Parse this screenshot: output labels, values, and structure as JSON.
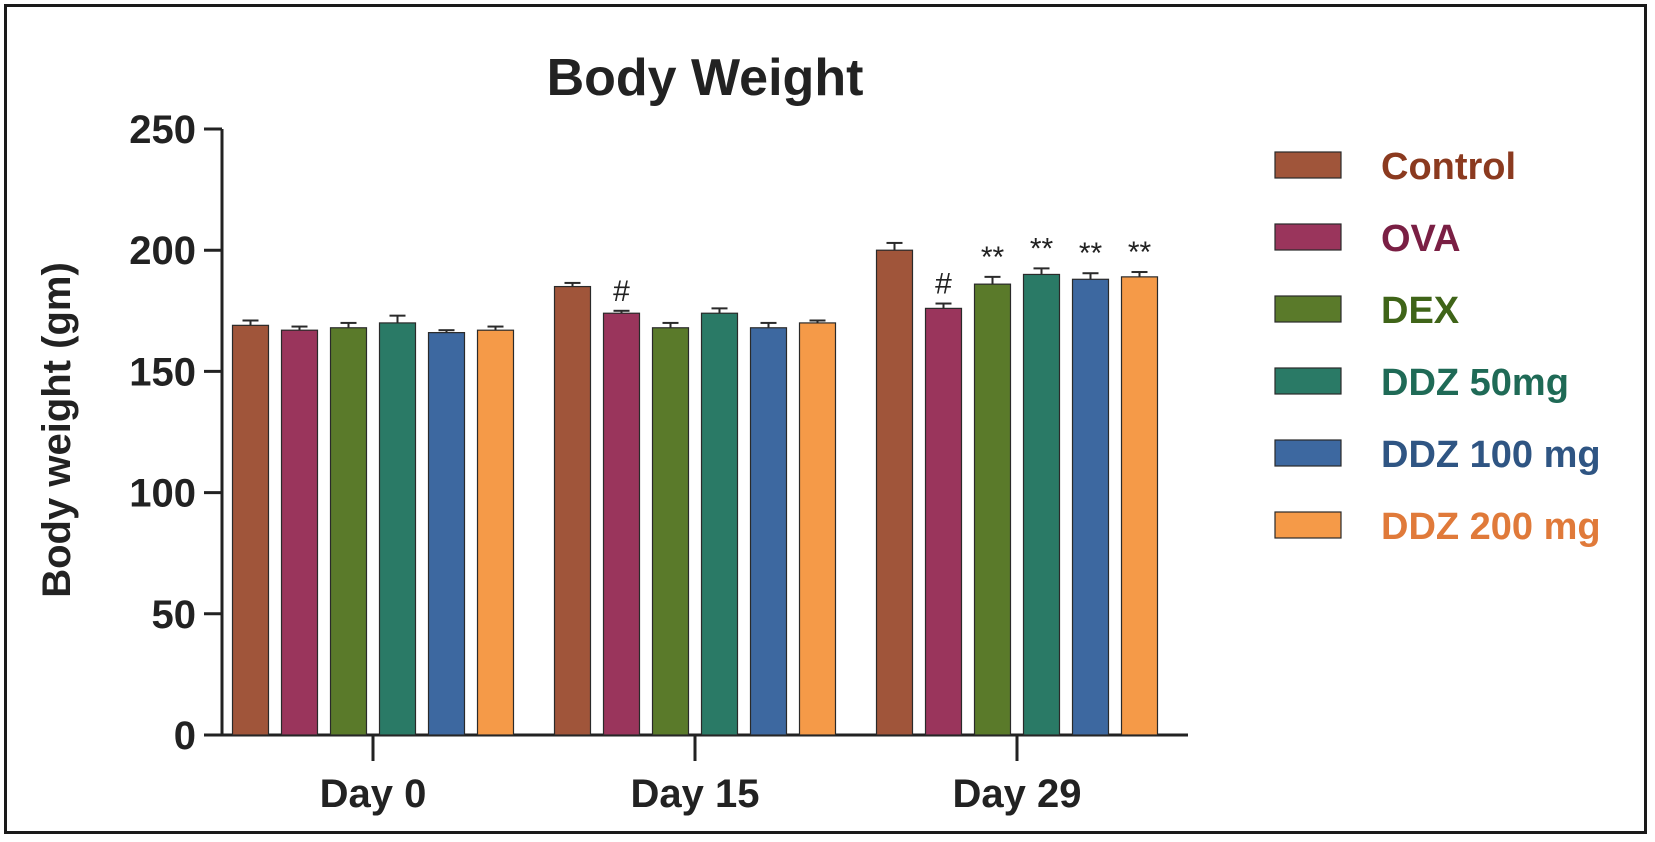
{
  "chart_data": {
    "type": "bar",
    "title": "Body Weight",
    "xlabel": "",
    "ylabel": "Body weight (gm)",
    "ylim": [
      0,
      250
    ],
    "yticks": [
      0,
      50,
      100,
      150,
      200,
      250
    ],
    "categories": [
      "Day 0",
      "Day 15",
      "Day 29"
    ],
    "legend_position": "right",
    "error_bars": true,
    "series": [
      {
        "name": "Control",
        "color": "#a0553a",
        "label_color": "#8b3a1f",
        "values": [
          169,
          185,
          200
        ],
        "errors": [
          2,
          1.5,
          3
        ],
        "annotations": [
          "",
          "",
          ""
        ]
      },
      {
        "name": "OVA",
        "color": "#9a355c",
        "label_color": "#7a1f44",
        "values": [
          167,
          174,
          176
        ],
        "errors": [
          1.5,
          1,
          2
        ],
        "annotations": [
          "",
          "#",
          "#"
        ]
      },
      {
        "name": "DEX",
        "color": "#5a7a2a",
        "label_color": "#3f6418",
        "values": [
          168,
          168,
          186
        ],
        "errors": [
          2,
          2,
          3
        ],
        "annotations": [
          "",
          "",
          "**"
        ]
      },
      {
        "name": "DDZ 50mg",
        "color": "#2a7a66",
        "label_color": "#1f6a56",
        "values": [
          170,
          174,
          190
        ],
        "errors": [
          3,
          2,
          2.5
        ],
        "annotations": [
          "",
          "",
          "**"
        ]
      },
      {
        "name": "DDZ 100 mg",
        "color": "#3d68a0",
        "label_color": "#2f5583",
        "values": [
          166,
          168,
          188
        ],
        "errors": [
          1,
          2,
          2.5
        ],
        "annotations": [
          "",
          "",
          "**"
        ]
      },
      {
        "name": "DDZ 200 mg",
        "color": "#f59a48",
        "label_color": "#e07a3a",
        "values": [
          167,
          170,
          189
        ],
        "errors": [
          1.5,
          1,
          2
        ],
        "annotations": [
          "",
          "",
          "**"
        ]
      }
    ]
  }
}
